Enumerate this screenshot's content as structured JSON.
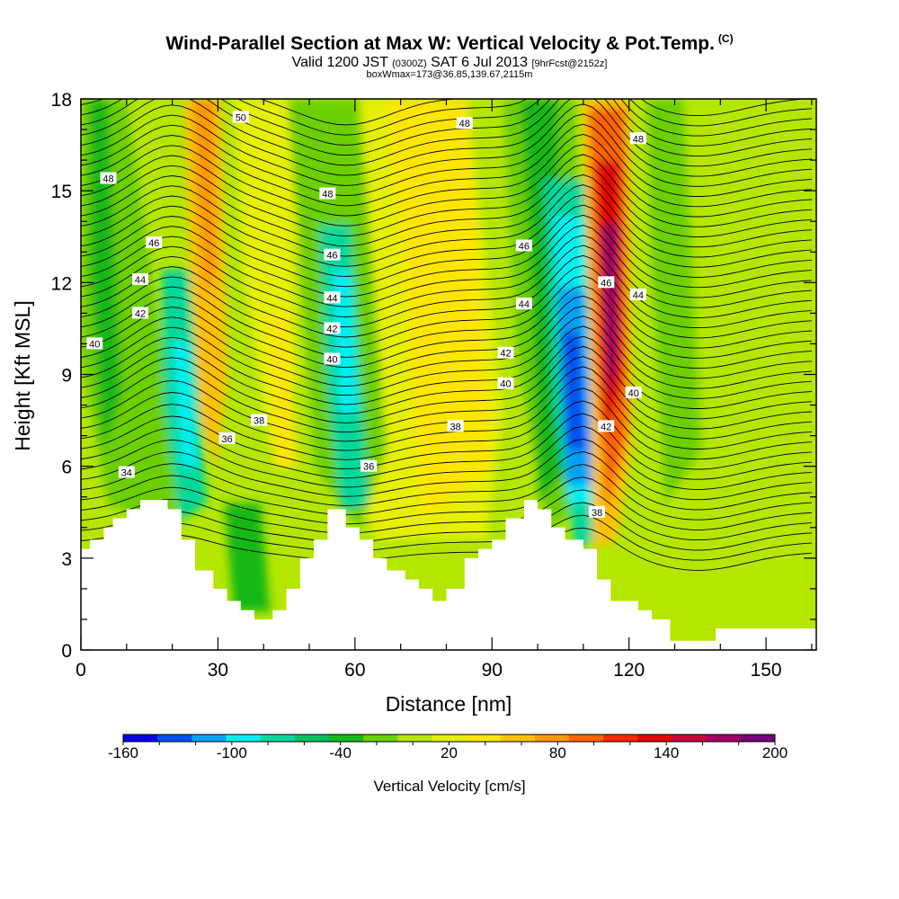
{
  "header": {
    "title": "Wind-Parallel Section at Max W: Vertical Velocity & Pot.Temp.",
    "title_tag": "(C)",
    "subtitle_a": "Valid 1200 JST",
    "subtitle_b": "(0300Z)",
    "subtitle_c": "SAT 6 Jul 2013",
    "subtitle_d": "[9hrFcst@2152z]",
    "box_line": "boxWmax=173@36.85,139.67,2115m"
  },
  "chart_data": {
    "type": "heatmap",
    "xlabel": "Distance [nm]",
    "ylabel": "Height [Kft MSL]",
    "xlim": [
      0,
      161
    ],
    "ylim": [
      0,
      18
    ],
    "x_ticks": [
      0,
      30,
      60,
      90,
      120,
      150
    ],
    "y_ticks": [
      0,
      3,
      6,
      9,
      12,
      15,
      18
    ],
    "colorbar": {
      "title": "Vertical Velocity [cm/s]",
      "range": [
        -160,
        200
      ],
      "step": 20,
      "labels": [
        "-160",
        "-100",
        "-40",
        "20",
        "80",
        "140",
        "200"
      ],
      "colors": [
        "#0000e6",
        "#0050f0",
        "#00a0f5",
        "#00f0f0",
        "#00d89c",
        "#00c060",
        "#18b818",
        "#6cd000",
        "#b4e600",
        "#e6f000",
        "#ffe600",
        "#ffc000",
        "#ff9600",
        "#ff6400",
        "#ff2800",
        "#e60000",
        "#c8003c",
        "#a00064",
        "#780078"
      ]
    },
    "terrain": [
      [
        0,
        3.3
      ],
      [
        2,
        3.3
      ],
      [
        2,
        3.6
      ],
      [
        5,
        3.6
      ],
      [
        5,
        4.0
      ],
      [
        7,
        4.0
      ],
      [
        7,
        4.3
      ],
      [
        10,
        4.3
      ],
      [
        10,
        4.6
      ],
      [
        13,
        4.6
      ],
      [
        13,
        4.9
      ],
      [
        19,
        4.9
      ],
      [
        19,
        4.6
      ],
      [
        22,
        4.6
      ],
      [
        22,
        3.6
      ],
      [
        25,
        3.6
      ],
      [
        25,
        2.6
      ],
      [
        29,
        2.6
      ],
      [
        29,
        2.0
      ],
      [
        32,
        2.0
      ],
      [
        32,
        1.6
      ],
      [
        35,
        1.6
      ],
      [
        35,
        1.3
      ],
      [
        38,
        1.3
      ],
      [
        38,
        1.0
      ],
      [
        42,
        1.0
      ],
      [
        42,
        1.3
      ],
      [
        45,
        1.3
      ],
      [
        45,
        2.0
      ],
      [
        48,
        2.0
      ],
      [
        48,
        3.0
      ],
      [
        51,
        3.0
      ],
      [
        51,
        3.6
      ],
      [
        54,
        3.6
      ],
      [
        54,
        4.6
      ],
      [
        58,
        4.6
      ],
      [
        58,
        4.0
      ],
      [
        61,
        4.0
      ],
      [
        61,
        3.6
      ],
      [
        64,
        3.6
      ],
      [
        64,
        3.0
      ],
      [
        67,
        3.0
      ],
      [
        67,
        2.6
      ],
      [
        71,
        2.6
      ],
      [
        71,
        2.3
      ],
      [
        74,
        2.3
      ],
      [
        74,
        2.0
      ],
      [
        77,
        2.0
      ],
      [
        77,
        1.6
      ],
      [
        80,
        1.6
      ],
      [
        80,
        2.0
      ],
      [
        84,
        2.0
      ],
      [
        84,
        3.0
      ],
      [
        87,
        3.0
      ],
      [
        87,
        3.3
      ],
      [
        90,
        3.3
      ],
      [
        90,
        3.6
      ],
      [
        93,
        3.6
      ],
      [
        93,
        4.3
      ],
      [
        97,
        4.3
      ],
      [
        97,
        4.9
      ],
      [
        100,
        4.9
      ],
      [
        100,
        4.6
      ],
      [
        103,
        4.6
      ],
      [
        103,
        4.0
      ],
      [
        106,
        4.0
      ],
      [
        106,
        3.6
      ],
      [
        110,
        3.6
      ],
      [
        110,
        3.3
      ],
      [
        113,
        3.3
      ],
      [
        113,
        2.3
      ],
      [
        116,
        2.3
      ],
      [
        116,
        1.6
      ],
      [
        122,
        1.6
      ],
      [
        122,
        1.3
      ],
      [
        125,
        1.3
      ],
      [
        125,
        1.0
      ],
      [
        129,
        1.0
      ],
      [
        129,
        0.3
      ],
      [
        139,
        0.3
      ],
      [
        139,
        0.7
      ],
      [
        161,
        0.7
      ]
    ],
    "isentrope_labels": [
      {
        "text": "50",
        "x": 35,
        "y": 17.4
      },
      {
        "text": "48",
        "x": 6,
        "y": 15.4
      },
      {
        "text": "48",
        "x": 54,
        "y": 14.9
      },
      {
        "text": "48",
        "x": 84,
        "y": 17.2
      },
      {
        "text": "48",
        "x": 122,
        "y": 16.7
      },
      {
        "text": "46",
        "x": 16,
        "y": 13.3
      },
      {
        "text": "46",
        "x": 55,
        "y": 12.9
      },
      {
        "text": "46",
        "x": 97,
        "y": 13.2
      },
      {
        "text": "46",
        "x": 115,
        "y": 12.0
      },
      {
        "text": "44",
        "x": 13,
        "y": 12.1
      },
      {
        "text": "44",
        "x": 55,
        "y": 11.5
      },
      {
        "text": "44",
        "x": 97,
        "y": 11.3
      },
      {
        "text": "44",
        "x": 122,
        "y": 11.6
      },
      {
        "text": "42",
        "x": 13,
        "y": 11.0
      },
      {
        "text": "42",
        "x": 55,
        "y": 10.5
      },
      {
        "text": "42",
        "x": 93,
        "y": 9.7
      },
      {
        "text": "42",
        "x": 115,
        "y": 7.3
      },
      {
        "text": "40",
        "x": 3,
        "y": 10.0
      },
      {
        "text": "40",
        "x": 55,
        "y": 9.5
      },
      {
        "text": "40",
        "x": 93,
        "y": 8.7
      },
      {
        "text": "40",
        "x": 121,
        "y": 8.4
      },
      {
        "text": "38",
        "x": 39,
        "y": 7.5
      },
      {
        "text": "38",
        "x": 82,
        "y": 7.3
      },
      {
        "text": "38",
        "x": 113,
        "y": 4.5
      },
      {
        "text": "36",
        "x": 32,
        "y": 6.9
      },
      {
        "text": "36",
        "x": 63,
        "y": 6.0
      },
      {
        "text": "34",
        "x": 10,
        "y": 5.8
      }
    ]
  }
}
